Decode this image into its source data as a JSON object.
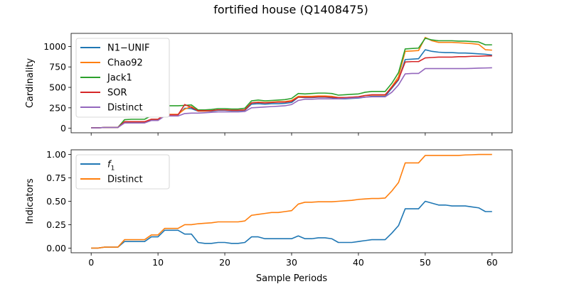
{
  "figure": {
    "title": "fortified house (Q1408475)"
  },
  "colors": {
    "blue": "#1f77b4",
    "orange": "#ff7f0e",
    "green": "#2ca02c",
    "red": "#d62728",
    "purple": "#9467bd"
  },
  "chart_data": [
    {
      "type": "line",
      "title": "",
      "xlabel": "",
      "ylabel": "Cardinality",
      "xlim": [
        -3,
        63
      ],
      "ylim": [
        -55,
        1160
      ],
      "xticks": [
        0,
        10,
        20,
        30,
        40,
        50,
        60
      ],
      "show_xtick_labels": false,
      "yticks": [
        0,
        250,
        500,
        750,
        1000
      ],
      "ytick_labels": [
        "0",
        "250",
        "500",
        "750",
        "1000"
      ],
      "grid": false,
      "legend": "upper-left",
      "x": [
        0,
        1,
        2,
        3,
        4,
        5,
        6,
        7,
        8,
        9,
        10,
        11,
        12,
        13,
        14,
        15,
        16,
        17,
        18,
        19,
        20,
        21,
        22,
        23,
        24,
        25,
        26,
        27,
        28,
        29,
        30,
        31,
        32,
        33,
        34,
        35,
        36,
        37,
        38,
        39,
        40,
        41,
        42,
        43,
        44,
        45,
        46,
        47,
        48,
        49,
        50,
        51,
        52,
        53,
        54,
        55,
        56,
        57,
        58,
        59,
        60
      ],
      "series": [
        {
          "name": "N1−UNIF",
          "color": "#1f77b4",
          "values": [
            5,
            5,
            10,
            10,
            10,
            75,
            75,
            75,
            75,
            105,
            105,
            165,
            165,
            165,
            245,
            240,
            210,
            210,
            210,
            220,
            220,
            215,
            215,
            220,
            295,
            300,
            295,
            300,
            300,
            305,
            315,
            380,
            375,
            375,
            380,
            380,
            375,
            360,
            360,
            365,
            370,
            380,
            390,
            390,
            390,
            490,
            590,
            840,
            845,
            850,
            960,
            940,
            930,
            925,
            925,
            920,
            920,
            915,
            910,
            905,
            895
          ]
        },
        {
          "name": "Chao92",
          "color": "#ff7f0e",
          "values": [
            5,
            5,
            10,
            10,
            10,
            80,
            80,
            80,
            80,
            110,
            110,
            170,
            170,
            170,
            235,
            265,
            210,
            210,
            215,
            225,
            225,
            220,
            220,
            225,
            310,
            320,
            315,
            320,
            325,
            325,
            340,
            390,
            390,
            390,
            395,
            395,
            390,
            375,
            375,
            380,
            385,
            400,
            405,
            405,
            405,
            510,
            630,
            940,
            945,
            950,
            1110,
            1070,
            1050,
            1050,
            1050,
            1045,
            1040,
            1035,
            1025,
            960,
            955
          ]
        },
        {
          "name": "Jack1",
          "color": "#2ca02c",
          "values": [
            5,
            5,
            10,
            10,
            10,
            105,
            110,
            110,
            110,
            155,
            160,
            275,
            275,
            275,
            280,
            285,
            225,
            225,
            230,
            240,
            240,
            235,
            235,
            245,
            335,
            345,
            335,
            340,
            345,
            350,
            365,
            425,
            420,
            425,
            430,
            430,
            425,
            405,
            410,
            415,
            420,
            440,
            450,
            450,
            450,
            550,
            680,
            970,
            975,
            980,
            1100,
            1080,
            1070,
            1070,
            1070,
            1065,
            1065,
            1060,
            1055,
            1020,
            1020
          ]
        },
        {
          "name": "SOR",
          "color": "#d62728",
          "values": [
            5,
            5,
            10,
            10,
            10,
            80,
            80,
            80,
            80,
            110,
            110,
            165,
            165,
            165,
            290,
            255,
            215,
            215,
            215,
            225,
            225,
            220,
            220,
            225,
            310,
            315,
            310,
            315,
            320,
            320,
            330,
            380,
            380,
            380,
            385,
            385,
            380,
            375,
            375,
            380,
            385,
            400,
            410,
            410,
            410,
            500,
            600,
            810,
            815,
            815,
            860,
            865,
            870,
            870,
            870,
            875,
            875,
            880,
            880,
            885,
            885
          ]
        },
        {
          "name": "Distinct",
          "color": "#9467bd",
          "values": [
            5,
            5,
            10,
            10,
            10,
            65,
            65,
            65,
            65,
            95,
            95,
            150,
            150,
            150,
            180,
            185,
            185,
            190,
            195,
            200,
            200,
            200,
            200,
            205,
            250,
            255,
            260,
            265,
            270,
            275,
            290,
            340,
            355,
            355,
            360,
            360,
            360,
            360,
            365,
            370,
            375,
            380,
            385,
            385,
            385,
            440,
            530,
            665,
            670,
            670,
            730,
            730,
            730,
            730,
            730,
            730,
            730,
            732,
            735,
            737,
            740
          ]
        }
      ]
    },
    {
      "type": "line",
      "title": "",
      "xlabel": "Sample Periods",
      "ylabel": "Indicators",
      "xlim": [
        -3,
        63
      ],
      "ylim": [
        -0.05,
        1.05
      ],
      "xticks": [
        0,
        10,
        20,
        30,
        40,
        50,
        60
      ],
      "xtick_labels": [
        "0",
        "10",
        "20",
        "30",
        "40",
        "50",
        "60"
      ],
      "show_xtick_labels": true,
      "yticks": [
        0,
        0.25,
        0.5,
        0.75,
        1.0
      ],
      "ytick_labels": [
        "0.00",
        "0.25",
        "0.50",
        "0.75",
        "1.00"
      ],
      "grid": false,
      "legend": "upper-left",
      "x": [
        0,
        1,
        2,
        3,
        4,
        5,
        6,
        7,
        8,
        9,
        10,
        11,
        12,
        13,
        14,
        15,
        16,
        17,
        18,
        19,
        20,
        21,
        22,
        23,
        24,
        25,
        26,
        27,
        28,
        29,
        30,
        31,
        32,
        33,
        34,
        35,
        36,
        37,
        38,
        39,
        40,
        41,
        42,
        43,
        44,
        45,
        46,
        47,
        48,
        49,
        50,
        51,
        52,
        53,
        54,
        55,
        56,
        57,
        58,
        59,
        60
      ],
      "series": [
        {
          "name": "f",
          "name_subscript": "1",
          "color": "#1f77b4",
          "values": [
            0.0,
            0.0,
            0.01,
            0.01,
            0.01,
            0.07,
            0.07,
            0.07,
            0.07,
            0.12,
            0.12,
            0.19,
            0.19,
            0.19,
            0.15,
            0.15,
            0.06,
            0.05,
            0.05,
            0.06,
            0.06,
            0.05,
            0.05,
            0.06,
            0.12,
            0.12,
            0.1,
            0.1,
            0.1,
            0.1,
            0.1,
            0.13,
            0.1,
            0.1,
            0.11,
            0.11,
            0.1,
            0.06,
            0.06,
            0.06,
            0.07,
            0.08,
            0.09,
            0.09,
            0.09,
            0.16,
            0.24,
            0.42,
            0.42,
            0.42,
            0.5,
            0.48,
            0.46,
            0.46,
            0.45,
            0.45,
            0.45,
            0.44,
            0.43,
            0.39,
            0.39
          ]
        },
        {
          "name": "Distinct",
          "color": "#ff7f0e",
          "values": [
            0.0,
            0.0,
            0.01,
            0.01,
            0.01,
            0.09,
            0.09,
            0.09,
            0.09,
            0.14,
            0.14,
            0.21,
            0.21,
            0.21,
            0.25,
            0.25,
            0.26,
            0.265,
            0.27,
            0.28,
            0.28,
            0.28,
            0.28,
            0.29,
            0.35,
            0.36,
            0.37,
            0.38,
            0.38,
            0.39,
            0.4,
            0.47,
            0.49,
            0.49,
            0.495,
            0.495,
            0.495,
            0.5,
            0.505,
            0.51,
            0.52,
            0.525,
            0.53,
            0.53,
            0.535,
            0.61,
            0.7,
            0.91,
            0.91,
            0.91,
            0.99,
            0.99,
            0.99,
            0.99,
            0.99,
            0.99,
            0.995,
            0.997,
            1.0,
            1.0,
            1.0
          ]
        }
      ]
    }
  ]
}
